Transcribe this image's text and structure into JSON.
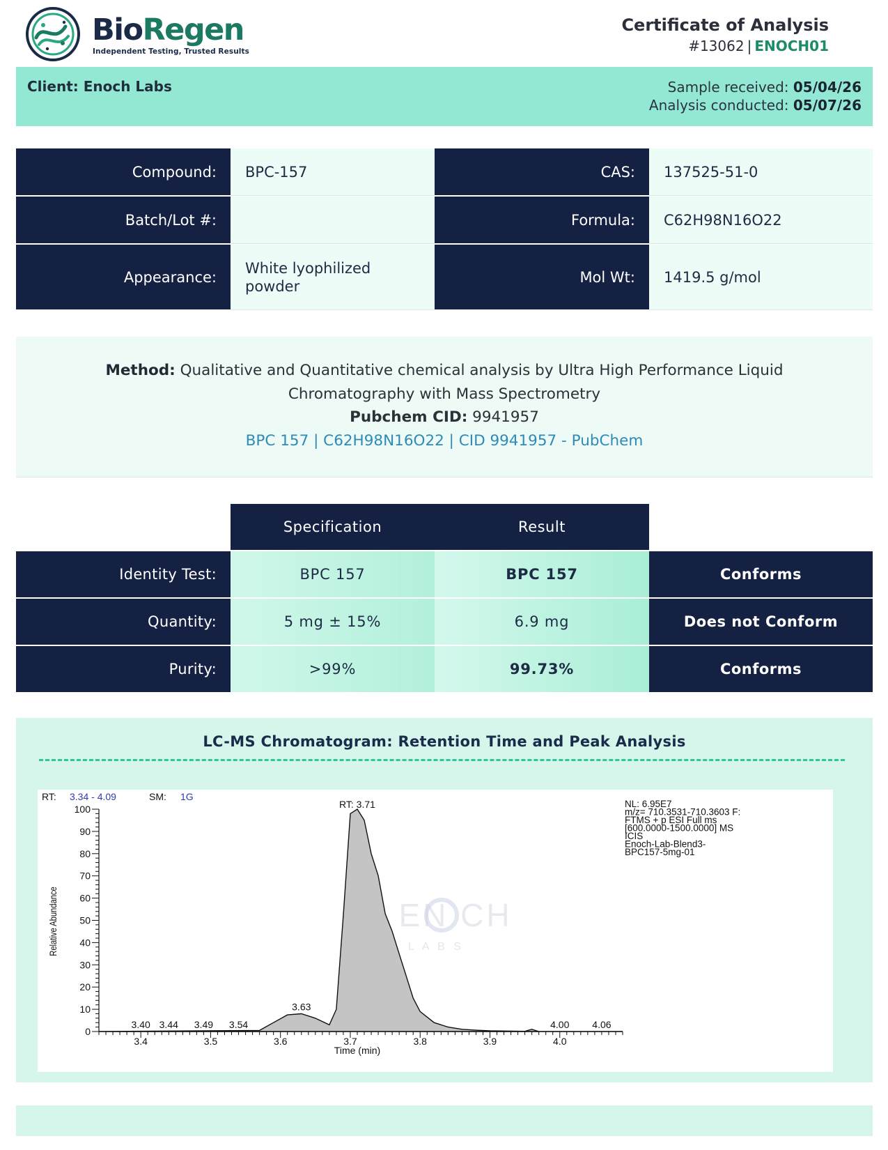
{
  "header": {
    "brand_part1": "Bio",
    "brand_part2": "Regen",
    "tagline": "Independent Testing, Trusted Results",
    "doc_title": "Certificate of Analysis",
    "doc_number": "#13062",
    "doc_code": "ENOCH01"
  },
  "client_band": {
    "client_label": "Client: Enoch Labs",
    "received_label": "Sample received:",
    "received_value": "05/04/26",
    "conducted_label": "Analysis conducted:",
    "conducted_value": "05/07/26"
  },
  "info_table": {
    "compound_label": "Compound:",
    "compound_value": "BPC-157",
    "cas_label": "CAS:",
    "cas_value": "137525-51-0",
    "batch_label": "Batch/Lot #:",
    "batch_value": "",
    "formula_label": "Formula:",
    "formula_value": "C62H98N16O22",
    "appearance_label": "Appearance:",
    "appearance_value": "White lyophilized powder",
    "molwt_label": "Mol Wt:",
    "molwt_value": "1419.5 g/mol"
  },
  "method": {
    "label": "Method:",
    "text": "Qualitative and Quantitative chemical analysis by Ultra High Performance Liquid Chromatography with Mass Spectrometry",
    "pubchem_label": "Pubchem CID:",
    "pubchem_value": "9941957",
    "link_text": "BPC 157 | C62H98N16O22 | CID 9941957 - PubChem"
  },
  "results": {
    "spec_header": "Specification",
    "result_header": "Result",
    "rows": [
      {
        "label": "Identity Test:",
        "spec": "BPC 157",
        "result": "BPC 157",
        "verdict": "Conforms"
      },
      {
        "label": "Quantity:",
        "spec": "5 mg ± 15%",
        "result": "6.9 mg",
        "verdict": "Does not Conform"
      },
      {
        "label": "Purity:",
        "spec": ">99%",
        "result": "99.73%",
        "verdict": "Conforms"
      }
    ]
  },
  "chromatogram": {
    "title": "LC-MS Chromatogram: Retention Time and Peak Analysis",
    "range_label": "RT:",
    "range_value": "3.34 - 4.09",
    "sm_label": "SM:",
    "sm_value": "1G",
    "peak_label": "RT: 3.71",
    "info_lines": [
      "NL: 6.95E7",
      "m/z= 710.3531-710.3603 F:",
      "FTMS + p ESI Full ms",
      "[600.0000-1500.0000]  MS",
      "ICIS",
      "Enoch-Lab-Blend3-",
      "BPC157-5mg-01"
    ],
    "watermark_main": "EN  CH",
    "watermark_sub": "L A B S",
    "colors": {
      "peak_fill": "#c4c4c4",
      "axis": "#111111",
      "accent": "#2fc59b"
    }
  },
  "chart_data": {
    "type": "area",
    "title": "",
    "xlabel": "Time (min)",
    "ylabel": "Relative Abundance",
    "xlim": [
      3.34,
      4.09
    ],
    "ylim": [
      0,
      100
    ],
    "x_ticks": [
      3.4,
      3.5,
      3.6,
      3.7,
      3.8,
      3.9,
      4.0
    ],
    "x_tick_labels": [
      "3.4",
      "3.5",
      "3.6",
      "3.7",
      "3.8",
      "3.9",
      "4.0"
    ],
    "y_ticks": [
      0,
      10,
      20,
      30,
      40,
      50,
      60,
      70,
      80,
      90,
      100
    ],
    "y_tick_labels": [
      "0",
      "10",
      "20",
      "30",
      "40",
      "50",
      "60",
      "70",
      "80",
      "90",
      "100"
    ],
    "peak_labels": [
      {
        "x": 3.4,
        "y": 0,
        "text": "3.40"
      },
      {
        "x": 3.44,
        "y": 0,
        "text": "3.44"
      },
      {
        "x": 3.49,
        "y": 0,
        "text": "3.49"
      },
      {
        "x": 3.54,
        "y": 0,
        "text": "3.54"
      },
      {
        "x": 3.63,
        "y": 8,
        "text": "3.63"
      },
      {
        "x": 4.0,
        "y": 0,
        "text": "4.00"
      },
      {
        "x": 4.06,
        "y": 0,
        "text": "4.06"
      }
    ],
    "series": [
      {
        "x": [
          3.34,
          3.57,
          3.59,
          3.61,
          3.63,
          3.65,
          3.67,
          3.68,
          3.69,
          3.7,
          3.71,
          3.72,
          3.73,
          3.74,
          3.75,
          3.76,
          3.77,
          3.78,
          3.79,
          3.8,
          3.82,
          3.84,
          3.86,
          3.88,
          3.9,
          3.95,
          3.96,
          3.97,
          4.09
        ],
        "y": [
          0,
          0.5,
          4,
          7.5,
          8,
          6,
          3,
          10,
          52,
          98,
          100,
          95,
          80,
          70,
          53,
          45,
          35,
          25,
          15,
          9,
          4,
          2,
          1,
          0.6,
          0.3,
          0.1,
          1,
          0,
          0
        ]
      }
    ]
  }
}
